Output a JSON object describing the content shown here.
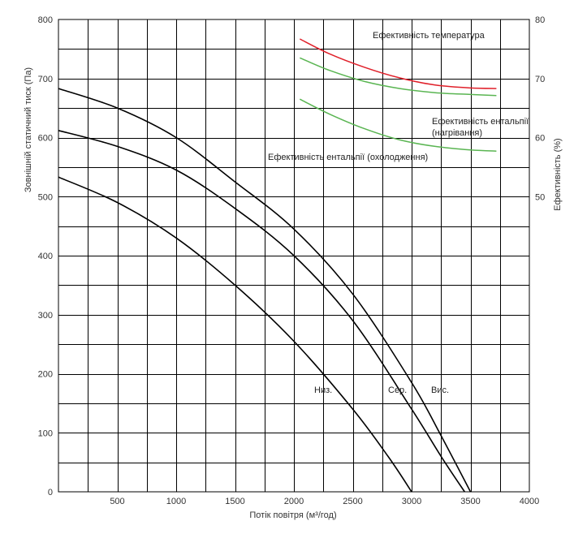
{
  "chart_data": {
    "type": "line",
    "title": "",
    "xlabel": "Потік повітря (м³/год)",
    "ylabel": "Зовнішній статичний тиск (Па)",
    "y2label": "Ефективність (%)",
    "xlim": [
      0,
      4000
    ],
    "ylim": [
      0,
      800
    ],
    "y2lim": [
      0,
      80
    ],
    "x_ticks": [
      500,
      1000,
      1500,
      2000,
      2500,
      3000,
      3500,
      4000
    ],
    "y_ticks": [
      0,
      100,
      200,
      300,
      400,
      500,
      600,
      700,
      800
    ],
    "y2_ticks": [
      50,
      60,
      70,
      80
    ],
    "grid": true,
    "series": [
      {
        "name": "Вис.",
        "axis": "left",
        "color": "#000000",
        "x": [
          0,
          500,
          1000,
          1500,
          2000,
          2500,
          3000,
          3250,
          3500
        ],
        "y": [
          683,
          650,
          600,
          525,
          445,
          335,
          185,
          95,
          0
        ]
      },
      {
        "name": "Сер.",
        "axis": "left",
        "color": "#000000",
        "x": [
          0,
          500,
          1000,
          1500,
          2000,
          2500,
          3000,
          3250,
          3450
        ],
        "y": [
          612,
          585,
          545,
          480,
          400,
          290,
          140,
          60,
          0
        ]
      },
      {
        "name": "Низ.",
        "axis": "left",
        "color": "#000000",
        "x": [
          0,
          500,
          1000,
          1500,
          2000,
          2500,
          2800,
          3000
        ],
        "y": [
          533,
          490,
          430,
          350,
          255,
          140,
          60,
          0
        ]
      },
      {
        "name": "Ефективність температура",
        "axis": "right",
        "color": "#e0202a",
        "x": [
          2050,
          2300,
          2600,
          2900,
          3200,
          3500,
          3720
        ],
        "y": [
          76.7,
          74.2,
          71.9,
          70.1,
          68.9,
          68.4,
          68.3
        ]
      },
      {
        "name": "Ефективність ентальпії (охолодження)",
        "axis": "right",
        "color": "#5ab552",
        "x": [
          2050,
          2300,
          2600,
          2900,
          3200,
          3500,
          3720
        ],
        "y": [
          73.5,
          71.4,
          69.5,
          68.3,
          67.6,
          67.3,
          67.1
        ]
      },
      {
        "name": "Ефективність ентальпії (нагрівання)",
        "axis": "right",
        "color": "#5ab552",
        "x": [
          2050,
          2300,
          2600,
          2900,
          3200,
          3500,
          3720
        ],
        "y": [
          66.5,
          64.0,
          61.5,
          59.6,
          58.5,
          57.9,
          57.7
        ]
      }
    ],
    "annotations": {
      "temp": "Ефективність температура",
      "enth_cool": "Ефективність ентальпії (охолодження)",
      "enth_heat_1": "Ефективність ентальпії",
      "enth_heat_2": "(нагрівання)",
      "low": "Низ.",
      "mid": "Сер.",
      "high": "Вис."
    }
  }
}
